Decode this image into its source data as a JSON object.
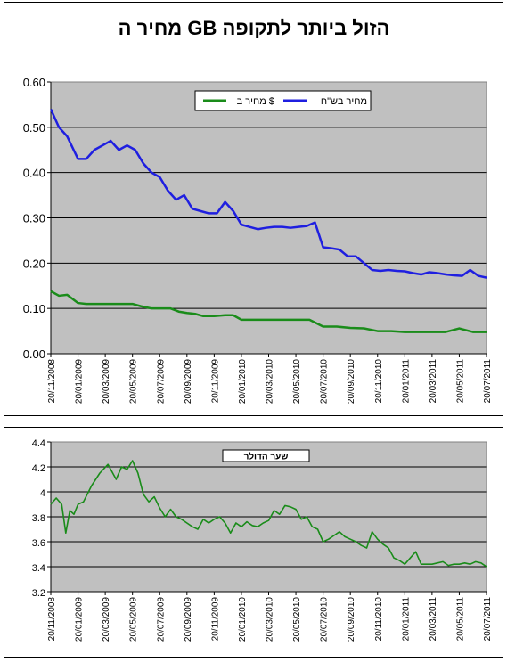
{
  "chart_data": [
    {
      "type": "line",
      "title": "מחיר ה GB הזול ביותר לתקופה",
      "xlabel": "",
      "ylabel": "",
      "ylim": [
        0,
        0.6
      ],
      "yticks": [
        "0.00",
        "0.10",
        "0.20",
        "0.30",
        "0.40",
        "0.50",
        "0.60"
      ],
      "xticks": [
        "20/11/2008",
        "20/01/2009",
        "20/03/2009",
        "20/05/2009",
        "20/07/2009",
        "20/09/2009",
        "20/11/2009",
        "20/01/2010",
        "20/03/2010",
        "20/05/2010",
        "20/07/2010",
        "20/09/2010",
        "20/11/2010",
        "20/01/2011",
        "20/03/2011",
        "20/05/2011",
        "20/07/2011"
      ],
      "grid": true,
      "legend_position": "top-center",
      "series": [
        {
          "name": "מחיר בש\"ח",
          "color": "#1f1fe0",
          "x": [
            0,
            0.3,
            0.6,
            1,
            1.3,
            1.6,
            1.9,
            2.2,
            2.5,
            2.8,
            3.1,
            3.4,
            3.7,
            4,
            4.3,
            4.6,
            4.9,
            5.2,
            5.5,
            5.8,
            6.1,
            6.4,
            6.7,
            7,
            7.3,
            7.6,
            7.9,
            8.2,
            8.5,
            8.8,
            9.1,
            9.4,
            9.7,
            10,
            10.3,
            10.6,
            10.9,
            11.2,
            11.5,
            11.8,
            12.1,
            12.4,
            12.7,
            13,
            13.3,
            13.6,
            13.9,
            14.2,
            14.5,
            14.8,
            15.1,
            15.4,
            15.7,
            16
          ],
          "values": [
            0.54,
            0.5,
            0.48,
            0.43,
            0.43,
            0.45,
            0.46,
            0.47,
            0.45,
            0.46,
            0.45,
            0.42,
            0.4,
            0.39,
            0.36,
            0.34,
            0.35,
            0.32,
            0.315,
            0.31,
            0.31,
            0.335,
            0.315,
            0.285,
            0.28,
            0.275,
            0.278,
            0.28,
            0.28,
            0.278,
            0.28,
            0.282,
            0.29,
            0.235,
            0.233,
            0.23,
            0.215,
            0.215,
            0.2,
            0.185,
            0.183,
            0.185,
            0.183,
            0.182,
            0.178,
            0.175,
            0.18,
            0.178,
            0.175,
            0.173,
            0.172,
            0.185,
            0.172,
            0.168
          ]
        },
        {
          "name": "מחיר ב $",
          "color": "#1a8c1a",
          "x": [
            0,
            0.3,
            0.6,
            1,
            1.3,
            1.6,
            2,
            2.5,
            3,
            3.3,
            3.7,
            4,
            4.4,
            4.7,
            5,
            5.3,
            5.6,
            6,
            6.4,
            6.7,
            7,
            7.5,
            8,
            8.5,
            9,
            9.5,
            10,
            10.5,
            11,
            11.5,
            12,
            12.5,
            13,
            13.5,
            14,
            14.5,
            15,
            15.5,
            16
          ],
          "values": [
            0.138,
            0.128,
            0.13,
            0.112,
            0.11,
            0.11,
            0.11,
            0.11,
            0.11,
            0.105,
            0.1,
            0.1,
            0.1,
            0.093,
            0.09,
            0.088,
            0.083,
            0.083,
            0.085,
            0.085,
            0.075,
            0.075,
            0.075,
            0.075,
            0.075,
            0.075,
            0.06,
            0.06,
            0.057,
            0.056,
            0.05,
            0.05,
            0.048,
            0.048,
            0.048,
            0.048,
            0.056,
            0.048,
            0.048
          ]
        }
      ]
    },
    {
      "type": "line",
      "title": "",
      "xlabel": "",
      "ylabel": "",
      "ylim": [
        3.2,
        4.4
      ],
      "yticks": [
        "3.2",
        "3.4",
        "3.6",
        "3.8",
        "4",
        "4.2",
        "4.4"
      ],
      "xticks": [
        "20/11/2008",
        "20/01/2009",
        "20/03/2009",
        "20/05/2009",
        "20/07/2009",
        "20/09/2009",
        "20/11/2009",
        "20/01/2010",
        "20/03/2010",
        "20/05/2010",
        "20/07/2010",
        "20/09/2010",
        "20/11/2010",
        "20/01/2011",
        "20/03/2011",
        "20/05/2011",
        "20/07/2011"
      ],
      "grid": true,
      "legend_position": "top-left",
      "series": [
        {
          "name": "שער הדולר",
          "color": "#1a8c1a",
          "x": [
            0,
            0.2,
            0.4,
            0.55,
            0.7,
            0.85,
            1,
            1.2,
            1.5,
            1.8,
            2.1,
            2.4,
            2.6,
            2.8,
            3,
            3.2,
            3.4,
            3.6,
            3.8,
            4,
            4.2,
            4.4,
            4.6,
            4.8,
            5,
            5.2,
            5.4,
            5.6,
            5.8,
            6,
            6.2,
            6.4,
            6.6,
            6.8,
            7,
            7.2,
            7.4,
            7.6,
            7.8,
            8,
            8.2,
            8.4,
            8.6,
            8.8,
            9,
            9.2,
            9.4,
            9.6,
            9.8,
            10,
            10.2,
            10.4,
            10.6,
            10.8,
            11,
            11.2,
            11.4,
            11.6,
            11.8,
            12,
            12.2,
            12.4,
            12.6,
            12.8,
            13,
            13.2,
            13.4,
            13.6,
            13.8,
            14,
            14.2,
            14.4,
            14.6,
            14.8,
            15,
            15.2,
            15.4,
            15.6,
            15.8,
            16
          ],
          "values": [
            3.9,
            3.95,
            3.9,
            3.67,
            3.85,
            3.82,
            3.9,
            3.92,
            4.05,
            4.15,
            4.22,
            4.1,
            4.2,
            4.18,
            4.25,
            4.15,
            3.98,
            3.92,
            3.96,
            3.87,
            3.8,
            3.86,
            3.8,
            3.78,
            3.75,
            3.72,
            3.7,
            3.78,
            3.75,
            3.78,
            3.8,
            3.75,
            3.67,
            3.75,
            3.72,
            3.76,
            3.73,
            3.72,
            3.75,
            3.77,
            3.85,
            3.82,
            3.89,
            3.88,
            3.86,
            3.78,
            3.8,
            3.72,
            3.7,
            3.6,
            3.62,
            3.65,
            3.68,
            3.64,
            3.62,
            3.6,
            3.57,
            3.55,
            3.68,
            3.62,
            3.58,
            3.55,
            3.47,
            3.45,
            3.42,
            3.47,
            3.52,
            3.42,
            3.42,
            3.42,
            3.43,
            3.44,
            3.41,
            3.42,
            3.42,
            3.43,
            3.42,
            3.44,
            3.43,
            3.4
          ]
        }
      ]
    }
  ]
}
